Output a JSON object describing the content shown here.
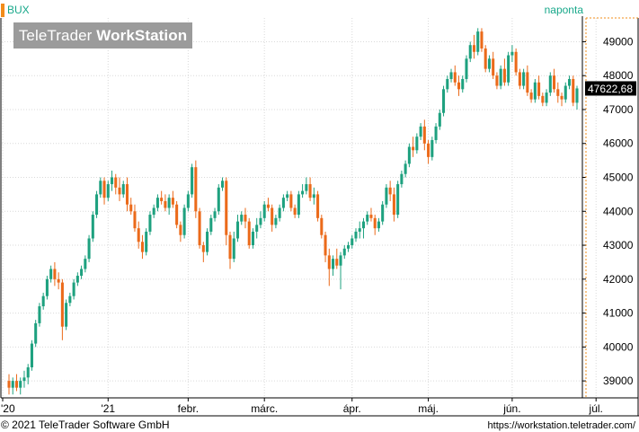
{
  "header": {
    "symbol": "BUX",
    "period": "naponta",
    "watermark_brand": "TeleTrader",
    "watermark_product": "WorkStation"
  },
  "footer": {
    "copyright": "© 2021 TeleTrader Software GmbH",
    "url": "https://workstation.teletrader.com/"
  },
  "colors": {
    "up": "#1ea17f",
    "down": "#eb6a1a",
    "grid": "#d9d9d9",
    "last_price_bg": "#000000",
    "accent": "#f28c1a"
  },
  "chart_data": {
    "type": "candlestick",
    "title": "",
    "xlabel": "",
    "ylabel": "",
    "ylim": [
      38500,
      49700
    ],
    "yticks": [
      39000,
      40000,
      41000,
      42000,
      43000,
      44000,
      45000,
      46000,
      47000,
      48000,
      49000
    ],
    "grid": true,
    "last_price_label": "47622,68",
    "last_price": 47622.68,
    "x_ticks": [
      {
        "label": "'20",
        "index": 0
      },
      {
        "label": "'21",
        "index": 26
      },
      {
        "label": "febr.",
        "index": 47
      },
      {
        "label": "márc.",
        "index": 67
      },
      {
        "label": "ápr.",
        "index": 90
      },
      {
        "label": "máj.",
        "index": 110
      },
      {
        "label": "jún.",
        "index": 132
      },
      {
        "label": "júl.",
        "index": 154
      }
    ],
    "ohlc": [
      [
        39000,
        39200,
        38600,
        38800
      ],
      [
        38800,
        39100,
        38600,
        39000
      ],
      [
        39000,
        39200,
        38700,
        38800
      ],
      [
        38800,
        39100,
        38600,
        39000
      ],
      [
        39000,
        39300,
        38800,
        39100
      ],
      [
        39100,
        39500,
        38900,
        39400
      ],
      [
        39400,
        40200,
        39300,
        40100
      ],
      [
        40100,
        40800,
        40000,
        40700
      ],
      [
        40700,
        41300,
        40600,
        41200
      ],
      [
        41200,
        41600,
        41100,
        41500
      ],
      [
        41500,
        42100,
        41400,
        42000
      ],
      [
        42000,
        42400,
        41900,
        42300
      ],
      [
        42300,
        42500,
        41800,
        42000
      ],
      [
        42000,
        42200,
        41700,
        41900
      ],
      [
        41900,
        42000,
        40200,
        40600
      ],
      [
        40600,
        41400,
        40500,
        41300
      ],
      [
        41300,
        41600,
        41200,
        41500
      ],
      [
        41500,
        42000,
        41400,
        41900
      ],
      [
        41900,
        42200,
        41800,
        42100
      ],
      [
        42100,
        42400,
        42000,
        42300
      ],
      [
        42300,
        42700,
        42200,
        42600
      ],
      [
        42600,
        43300,
        42500,
        43200
      ],
      [
        43200,
        44000,
        43100,
        43900
      ],
      [
        43900,
        44600,
        43800,
        44500
      ],
      [
        44500,
        45000,
        44400,
        44900
      ],
      [
        44900,
        45000,
        44200,
        44400
      ],
      [
        44400,
        44900,
        44300,
        44800
      ],
      [
        44800,
        45200,
        44600,
        45000
      ],
      [
        45000,
        45100,
        44500,
        44700
      ],
      [
        44700,
        45000,
        44300,
        44500
      ],
      [
        44500,
        44900,
        44400,
        44800
      ],
      [
        44800,
        45000,
        44000,
        44200
      ],
      [
        44200,
        44400,
        43900,
        44000
      ],
      [
        44000,
        44200,
        43400,
        43500
      ],
      [
        43500,
        43700,
        42900,
        43100
      ],
      [
        43100,
        43300,
        42600,
        42800
      ],
      [
        42800,
        43500,
        42700,
        43400
      ],
      [
        43400,
        44000,
        43300,
        43900
      ],
      [
        43900,
        44200,
        43800,
        44100
      ],
      [
        44100,
        44500,
        44000,
        44400
      ],
      [
        44400,
        44600,
        44200,
        44300
      ],
      [
        44300,
        44500,
        44000,
        44100
      ],
      [
        44100,
        44500,
        43900,
        44400
      ],
      [
        44400,
        44600,
        44100,
        44200
      ],
      [
        44200,
        44300,
        43500,
        43600
      ],
      [
        43600,
        43700,
        43100,
        43300
      ],
      [
        43300,
        44200,
        43200,
        44100
      ],
      [
        44100,
        44600,
        44000,
        44500
      ],
      [
        44500,
        45400,
        44400,
        45300
      ],
      [
        45300,
        45500,
        43800,
        44000
      ],
      [
        44000,
        44100,
        42900,
        43000
      ],
      [
        43000,
        43100,
        42500,
        42800
      ],
      [
        42800,
        43500,
        42700,
        43400
      ],
      [
        43400,
        43900,
        43300,
        43800
      ],
      [
        43800,
        44100,
        43700,
        44000
      ],
      [
        44000,
        44800,
        43900,
        44700
      ],
      [
        44700,
        45000,
        44600,
        44900
      ],
      [
        44900,
        45000,
        43000,
        43300
      ],
      [
        43300,
        43400,
        42300,
        42600
      ],
      [
        42600,
        43400,
        42500,
        43200
      ],
      [
        43200,
        43900,
        43100,
        43700
      ],
      [
        43700,
        44000,
        43600,
        43900
      ],
      [
        43900,
        44100,
        43500,
        43700
      ],
      [
        43700,
        43800,
        42900,
        43000
      ],
      [
        43000,
        43500,
        42900,
        43400
      ],
      [
        43400,
        43800,
        43200,
        43600
      ],
      [
        43600,
        44000,
        43500,
        43800
      ],
      [
        43800,
        44300,
        43700,
        44200
      ],
      [
        44200,
        44400,
        44000,
        44100
      ],
      [
        44100,
        44200,
        43400,
        43600
      ],
      [
        43600,
        43900,
        43500,
        43800
      ],
      [
        43800,
        44200,
        43700,
        44100
      ],
      [
        44100,
        44500,
        44000,
        44400
      ],
      [
        44400,
        44600,
        44300,
        44500
      ],
      [
        44500,
        44600,
        44000,
        44100
      ],
      [
        44100,
        44200,
        43800,
        43900
      ],
      [
        43900,
        44600,
        43800,
        44500
      ],
      [
        44500,
        44800,
        44400,
        44600
      ],
      [
        44600,
        45000,
        44500,
        44800
      ],
      [
        44800,
        45000,
        44300,
        44400
      ],
      [
        44400,
        44700,
        44200,
        44500
      ],
      [
        44500,
        44600,
        43700,
        43800
      ],
      [
        43800,
        43900,
        43200,
        43300
      ],
      [
        43300,
        43400,
        42500,
        42700
      ],
      [
        42700,
        42900,
        41800,
        42300
      ],
      [
        42300,
        42700,
        42100,
        42600
      ],
      [
        42600,
        42900,
        42300,
        42400
      ],
      [
        42400,
        42800,
        41700,
        42700
      ],
      [
        42700,
        43000,
        42600,
        42900
      ],
      [
        42900,
        43100,
        42800,
        43000
      ],
      [
        43000,
        43300,
        42900,
        43200
      ],
      [
        43200,
        43500,
        43100,
        43400
      ],
      [
        43400,
        43700,
        43200,
        43500
      ],
      [
        43500,
        43800,
        43200,
        43700
      ],
      [
        43700,
        44000,
        43600,
        43900
      ],
      [
        43900,
        44100,
        43700,
        43800
      ],
      [
        43800,
        43900,
        43300,
        43500
      ],
      [
        43500,
        43800,
        43400,
        43700
      ],
      [
        43700,
        44300,
        43600,
        44200
      ],
      [
        44200,
        44800,
        44100,
        44700
      ],
      [
        44700,
        44900,
        44300,
        44500
      ],
      [
        44500,
        44700,
        43700,
        43900
      ],
      [
        43900,
        44900,
        43800,
        44800
      ],
      [
        44800,
        45200,
        44700,
        45100
      ],
      [
        45100,
        45500,
        45000,
        45400
      ],
      [
        45400,
        46000,
        45300,
        45900
      ],
      [
        45900,
        46200,
        45600,
        45800
      ],
      [
        45800,
        46300,
        45700,
        46200
      ],
      [
        46200,
        46600,
        46100,
        46500
      ],
      [
        46500,
        46700,
        45800,
        46000
      ],
      [
        46000,
        46100,
        45400,
        45600
      ],
      [
        45600,
        46200,
        45500,
        46100
      ],
      [
        46100,
        46600,
        46000,
        46500
      ],
      [
        46500,
        47000,
        46400,
        46900
      ],
      [
        46900,
        47700,
        46800,
        47600
      ],
      [
        47600,
        48000,
        47500,
        47900
      ],
      [
        47900,
        48200,
        47800,
        48100
      ],
      [
        48100,
        48300,
        47700,
        47800
      ],
      [
        47800,
        48000,
        47400,
        47600
      ],
      [
        47600,
        48000,
        47500,
        47900
      ],
      [
        47900,
        48600,
        47800,
        48500
      ],
      [
        48500,
        49000,
        48400,
        48900
      ],
      [
        48900,
        49200,
        48500,
        48700
      ],
      [
        48700,
        49400,
        48600,
        49300
      ],
      [
        49300,
        49400,
        48700,
        48800
      ],
      [
        48800,
        48900,
        48100,
        48200
      ],
      [
        48200,
        48600,
        48100,
        48500
      ],
      [
        48500,
        48700,
        47900,
        48000
      ],
      [
        48000,
        48100,
        47600,
        47700
      ],
      [
        47700,
        48300,
        47600,
        48200
      ],
      [
        48200,
        48500,
        47700,
        47800
      ],
      [
        47800,
        48700,
        47700,
        48600
      ],
      [
        48600,
        48900,
        48400,
        48700
      ],
      [
        48700,
        48800,
        48000,
        48100
      ],
      [
        48100,
        48200,
        47600,
        47700
      ],
      [
        47700,
        48200,
        47600,
        48100
      ],
      [
        48100,
        48300,
        47400,
        47500
      ],
      [
        47500,
        47600,
        47200,
        47300
      ],
      [
        47300,
        47900,
        47200,
        47800
      ],
      [
        47800,
        48000,
        47300,
        47400
      ],
      [
        47400,
        47500,
        47100,
        47200
      ],
      [
        47200,
        47600,
        47100,
        47500
      ],
      [
        47500,
        48100,
        47400,
        48000
      ],
      [
        48000,
        48200,
        47500,
        47600
      ],
      [
        47600,
        47800,
        47200,
        47400
      ],
      [
        47400,
        47500,
        47100,
        47300
      ],
      [
        47300,
        47800,
        47200,
        47700
      ],
      [
        47700,
        48000,
        47600,
        47900
      ],
      [
        47900,
        48000,
        47100,
        47200
      ],
      [
        47200,
        47700,
        47000,
        47622.68
      ]
    ]
  }
}
